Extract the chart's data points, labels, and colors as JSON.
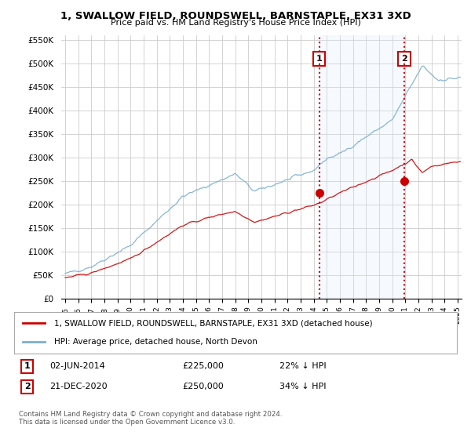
{
  "title": "1, SWALLOW FIELD, ROUNDSWELL, BARNSTAPLE, EX31 3XD",
  "subtitle": "Price paid vs. HM Land Registry's House Price Index (HPI)",
  "hpi_label": "HPI: Average price, detached house, North Devon",
  "price_label": "1, SWALLOW FIELD, ROUNDSWELL, BARNSTAPLE, EX31 3XD (detached house)",
  "legend_note": "Contains HM Land Registry data © Crown copyright and database right 2024.\nThis data is licensed under the Open Government Licence v3.0.",
  "sale1_date": "02-JUN-2014",
  "sale1_price": "£225,000",
  "sale1_pct": "22% ↓ HPI",
  "sale1_label": "1",
  "sale2_date": "21-DEC-2020",
  "sale2_price": "£250,000",
  "sale2_pct": "34% ↓ HPI",
  "sale2_label": "2",
  "ylim_min": 0,
  "ylim_max": 560000,
  "hpi_color": "#7aaed4",
  "price_color": "#cc0000",
  "dashed_color": "#cc0000",
  "shade_color": "#ddeeff",
  "background_color": "#ffffff",
  "grid_color": "#cccccc"
}
